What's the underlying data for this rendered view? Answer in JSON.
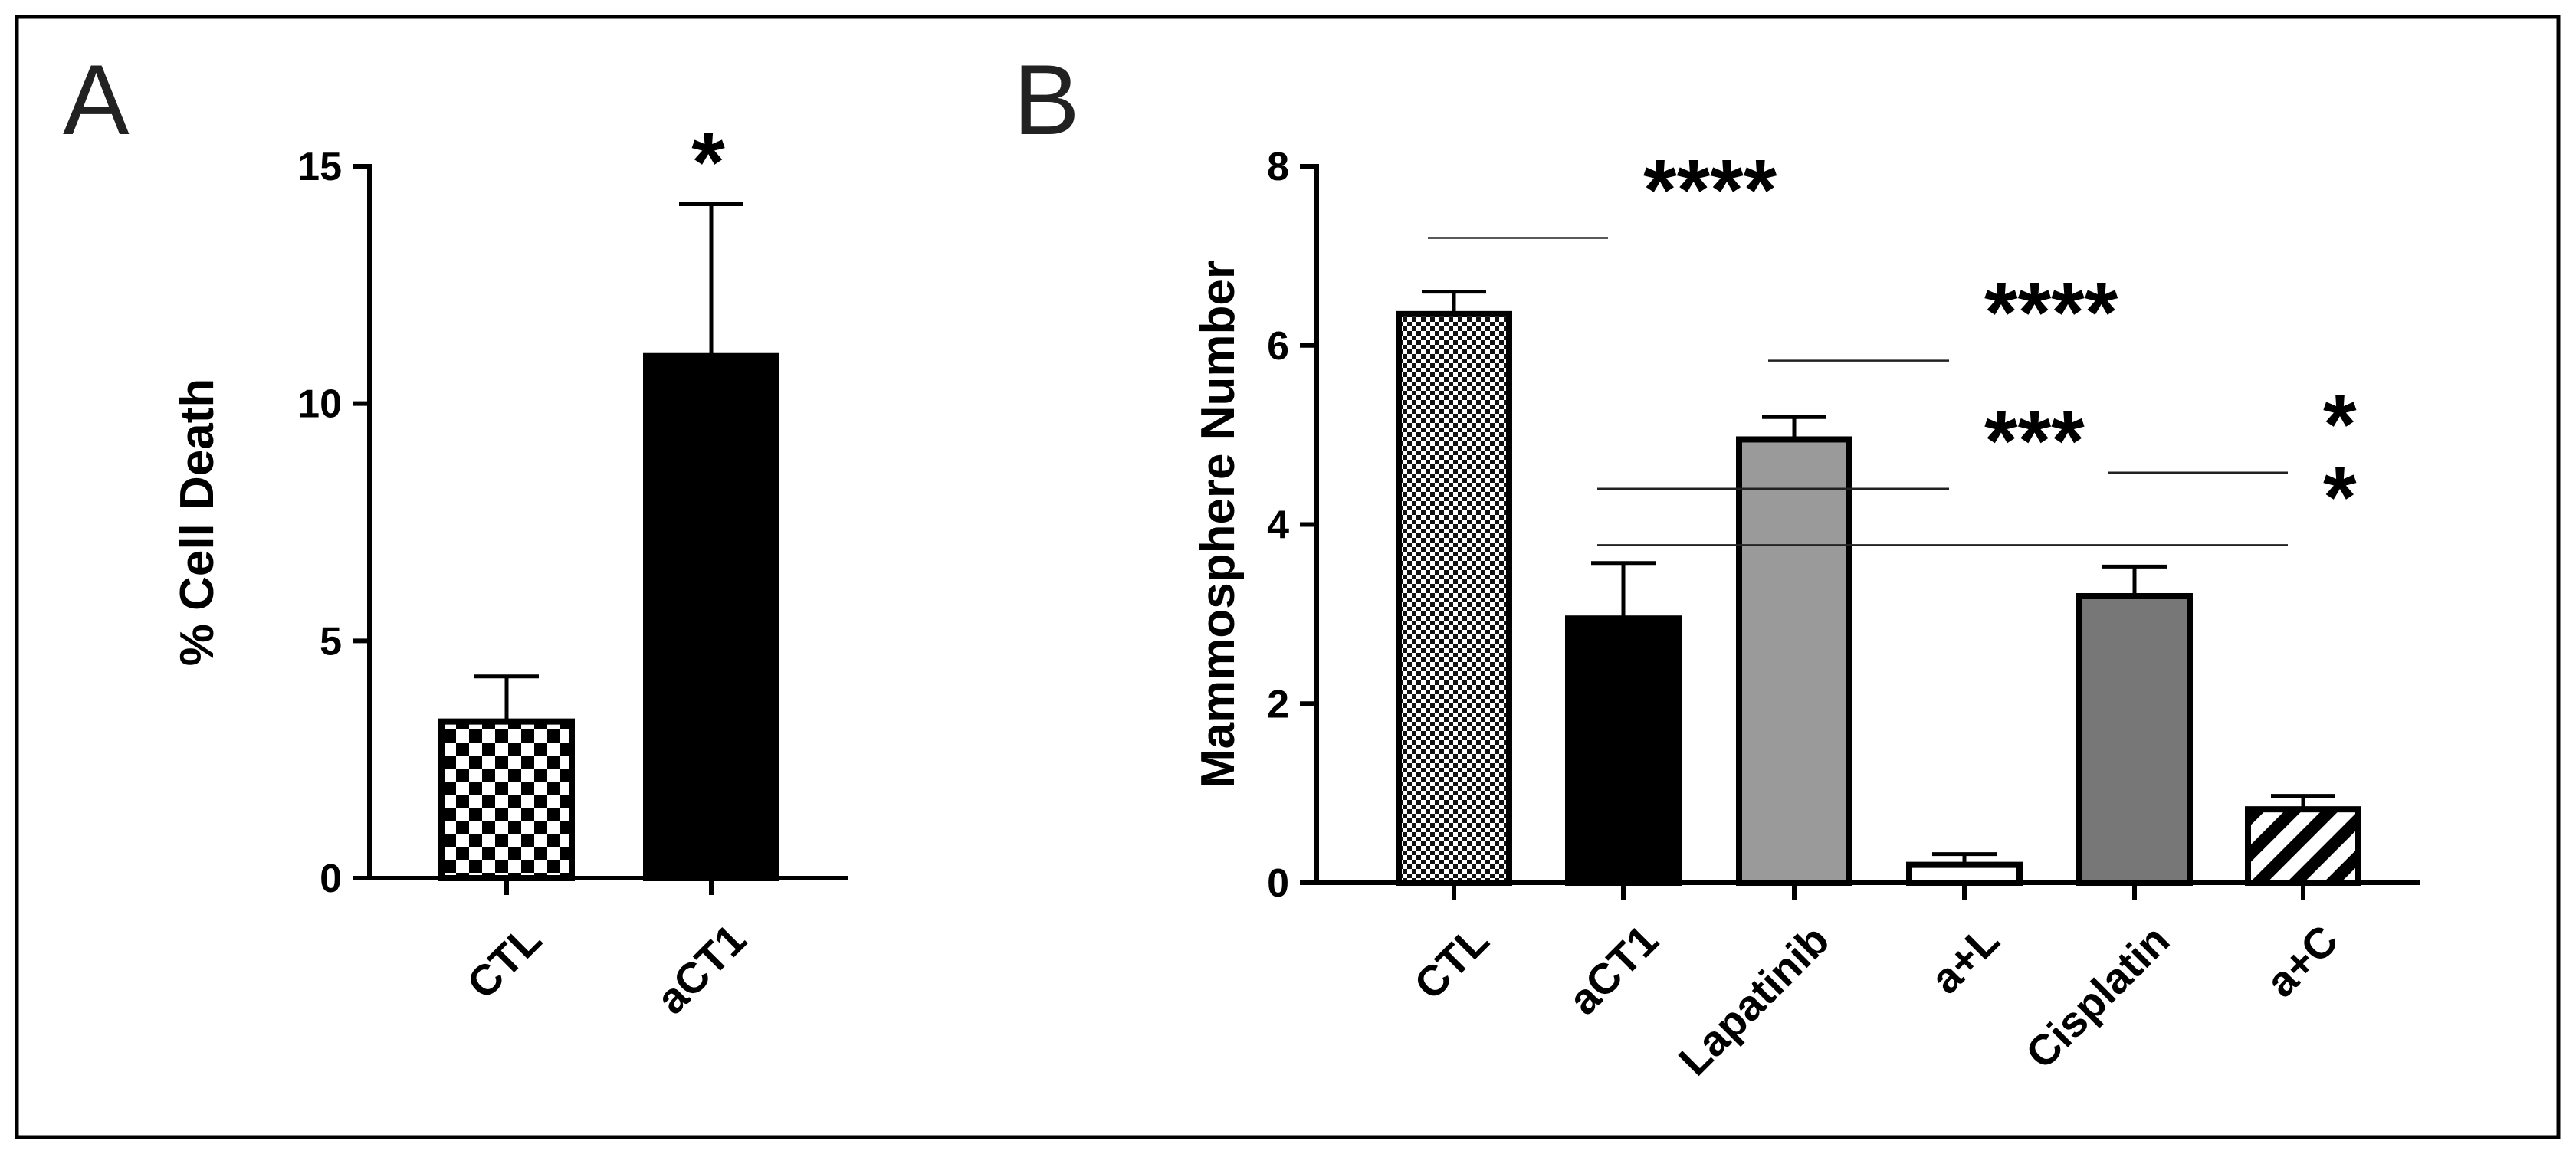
{
  "figure": {
    "panels": [
      "A",
      "B"
    ]
  },
  "colors": {
    "black": "#000000",
    "light_gray": "#9a9a9a",
    "dark_gray": "#777777",
    "white": "#ffffff"
  },
  "chart_data": [
    {
      "panel": "A",
      "type": "bar",
      "categories": [
        "CTL",
        "aCT1"
      ],
      "values": [
        3.3,
        11.0
      ],
      "errors": [
        0.95,
        3.2
      ],
      "fills": [
        "checker",
        "black"
      ],
      "ylabel": "% Cell Death",
      "xlabel": "",
      "ylim": [
        0,
        15
      ],
      "yticks": [
        "0",
        "5",
        "10",
        "15"
      ],
      "yticks_values": [
        0,
        5,
        10,
        15
      ],
      "significance": [
        {
          "label": "*",
          "over_category": "aCT1"
        }
      ]
    },
    {
      "panel": "B",
      "type": "bar",
      "categories": [
        "CTL",
        "aCT1",
        "Lapatinib",
        "a+L",
        "Cisplatin",
        "a+C"
      ],
      "values": [
        6.35,
        2.95,
        4.95,
        0.2,
        3.2,
        0.82
      ],
      "errors": [
        0.25,
        0.62,
        0.25,
        0.12,
        0.33,
        0.15
      ],
      "fills": [
        "checker-fine",
        "black",
        "light_gray",
        "white",
        "dark_gray",
        "hatch"
      ],
      "ylabel": "Mammosphere Number",
      "xlabel": "",
      "ylim": [
        0,
        8
      ],
      "yticks": [
        "0",
        "2",
        "4",
        "6",
        "8"
      ],
      "yticks_values": [
        0,
        2,
        4,
        6,
        8
      ],
      "significance": [
        {
          "label": "****",
          "from": 0,
          "to": 1,
          "line_y": 7.2
        },
        {
          "label": "****",
          "from": 2,
          "to": 3,
          "line_y": 5.83
        },
        {
          "label": "***",
          "from": 1,
          "to": 3,
          "line_y": 4.4
        },
        {
          "label": "*",
          "from": 4,
          "to": 5,
          "line_y": 4.58
        },
        {
          "label": "*",
          "from": 1,
          "to": 5,
          "line_y": 3.77
        }
      ]
    }
  ]
}
